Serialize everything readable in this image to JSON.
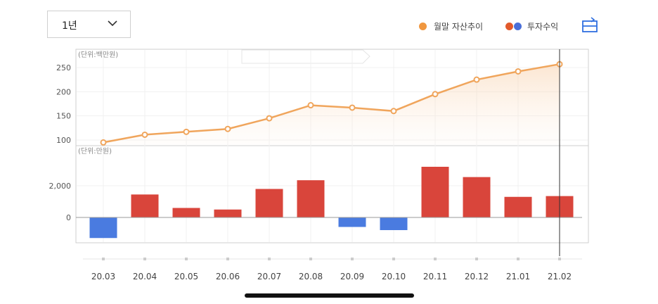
{
  "period": {
    "selected": "1년"
  },
  "legend": {
    "asset_trend": "월말 자산추이",
    "investment_return": "투자수익"
  },
  "colors": {
    "line": "#F0A55C",
    "positive": "#D9453B",
    "negative": "#4A7BE0",
    "dot_orange": "#F0973F"
  },
  "icons": {
    "chevron": "chevron-down-icon",
    "toggle": "chart-toggle-icon"
  },
  "chart_data": [
    {
      "type": "area",
      "unit_label": "(단위:백만원)",
      "categories": [
        "20.03",
        "20.04",
        "20.05",
        "20.06",
        "20.07",
        "20.08",
        "20.09",
        "20.10",
        "20.11",
        "20.12",
        "21.01",
        "21.02"
      ],
      "values": [
        95,
        111,
        117,
        123,
        145,
        172,
        167,
        160,
        195,
        225,
        242,
        257
      ],
      "y_ticks": [
        "250",
        "200",
        "150",
        "100"
      ],
      "ylim": [
        90,
        270
      ],
      "series_name": "월말 자산추이"
    },
    {
      "type": "bar",
      "unit_label": "(단위:만원)",
      "categories": [
        "20.03",
        "20.04",
        "20.05",
        "20.06",
        "20.07",
        "20.08",
        "20.09",
        "20.10",
        "20.11",
        "20.12",
        "21.01",
        "21.02"
      ],
      "values": [
        -1300,
        1450,
        600,
        500,
        1800,
        2350,
        -600,
        -800,
        3200,
        2550,
        1300,
        1350
      ],
      "y_ticks": [
        "2,000",
        "0"
      ],
      "ylim": [
        -1300,
        3400
      ],
      "series_name": "투자수익"
    }
  ]
}
